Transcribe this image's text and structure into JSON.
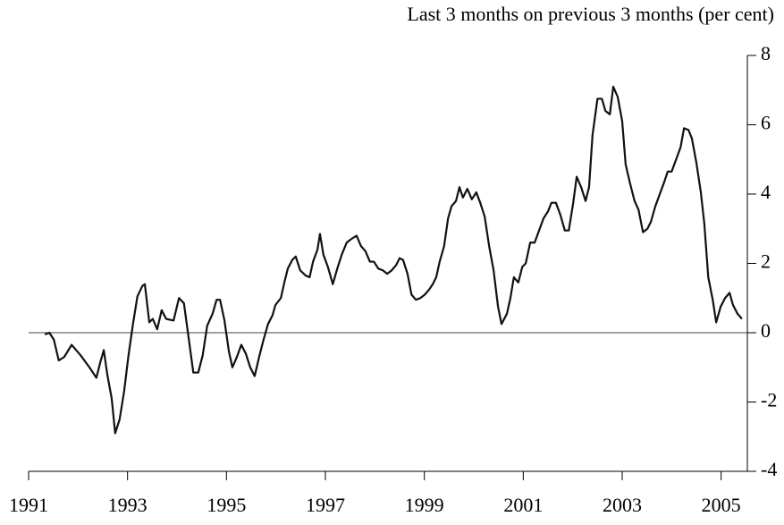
{
  "chart_data": {
    "type": "line",
    "title": "Last 3 months on previous 3 months (per cent)",
    "x": [
      1991.33,
      1991.42,
      1991.51,
      1991.61,
      1991.72,
      1991.87,
      1992.05,
      1992.23,
      1992.37,
      1992.45,
      1992.52,
      1992.59,
      1992.68,
      1992.75,
      1992.84,
      1992.93,
      1993.02,
      1993.11,
      1993.2,
      1993.3,
      1993.35,
      1993.44,
      1993.51,
      1993.6,
      1993.69,
      1993.78,
      1993.93,
      1994.04,
      1994.14,
      1994.33,
      1994.43,
      1994.52,
      1994.61,
      1994.72,
      1994.8,
      1994.87,
      1994.96,
      1995.05,
      1995.12,
      1995.21,
      1995.3,
      1995.39,
      1995.48,
      1995.57,
      1995.66,
      1995.75,
      1995.84,
      1995.93,
      1995.99,
      1996.1,
      1996.17,
      1996.24,
      1996.33,
      1996.4,
      1996.49,
      1996.6,
      1996.68,
      1996.75,
      1996.84,
      1996.89,
      1996.96,
      1997.05,
      1997.15,
      1997.24,
      1997.33,
      1997.43,
      1997.52,
      1997.63,
      1997.72,
      1997.81,
      1997.9,
      1997.98,
      1998.07,
      1998.16,
      1998.25,
      1998.34,
      1998.43,
      1998.5,
      1998.57,
      1998.66,
      1998.74,
      1998.83,
      1998.92,
      1999.01,
      1999.1,
      1999.17,
      1999.24,
      1999.31,
      1999.4,
      1999.48,
      1999.55,
      1999.64,
      1999.71,
      1999.78,
      1999.87,
      1999.96,
      2000.05,
      2000.13,
      2000.22,
      2000.31,
      2000.4,
      2000.49,
      2000.56,
      2000.67,
      2000.74,
      2000.81,
      2000.9,
      2000.98,
      2001.05,
      2001.14,
      2001.23,
      2001.32,
      2001.41,
      2001.5,
      2001.57,
      2001.66,
      2001.75,
      2001.84,
      2001.92,
      2002.01,
      2002.08,
      2002.17,
      2002.26,
      2002.33,
      2002.4,
      2002.5,
      2002.59,
      2002.66,
      2002.75,
      2002.82,
      2002.91,
      2003.0,
      2003.07,
      2003.16,
      2003.25,
      2003.33,
      2003.42,
      2003.51,
      2003.58,
      2003.67,
      2003.76,
      2003.85,
      2003.92,
      2004.0,
      2004.09,
      2004.18,
      2004.25,
      2004.34,
      2004.41,
      2004.5,
      2004.59,
      2004.66,
      2004.74,
      2004.83,
      2004.9,
      2004.99,
      2005.08,
      2005.17,
      2005.24,
      2005.33,
      2005.42
    ],
    "series": [
      {
        "color": "#111111",
        "values": [
          -0.05,
          0,
          -0.2,
          -0.8,
          -0.7,
          -0.35,
          -0.65,
          -1.0,
          -1.3,
          -0.85,
          -0.5,
          -1.2,
          -1.9,
          -2.9,
          -2.5,
          -1.7,
          -0.65,
          0.25,
          1.05,
          1.35,
          1.4,
          0.3,
          0.4,
          0.1,
          0.65,
          0.4,
          0.35,
          1.0,
          0.85,
          -1.15,
          -1.15,
          -0.65,
          0.2,
          0.55,
          0.95,
          0.95,
          0.35,
          -0.55,
          -1.0,
          -0.7,
          -0.35,
          -0.6,
          -1.0,
          -1.25,
          -0.7,
          -0.2,
          0.25,
          0.5,
          0.8,
          1.0,
          1.45,
          1.85,
          2.1,
          2.2,
          1.8,
          1.65,
          1.6,
          2.05,
          2.4,
          2.85,
          2.25,
          1.9,
          1.4,
          1.85,
          2.25,
          2.6,
          2.7,
          2.8,
          2.5,
          2.35,
          2.05,
          2.05,
          1.85,
          1.8,
          1.7,
          1.8,
          1.95,
          2.15,
          2.1,
          1.7,
          1.1,
          0.95,
          1.0,
          1.1,
          1.25,
          1.4,
          1.6,
          2.05,
          2.5,
          3.3,
          3.65,
          3.8,
          4.2,
          3.9,
          4.15,
          3.85,
          4.05,
          3.75,
          3.35,
          2.5,
          1.8,
          0.75,
          0.25,
          0.55,
          1.0,
          1.6,
          1.45,
          1.9,
          2.0,
          2.6,
          2.6,
          2.95,
          3.3,
          3.5,
          3.75,
          3.75,
          3.4,
          2.95,
          2.95,
          3.75,
          4.5,
          4.2,
          3.8,
          4.2,
          5.7,
          6.75,
          6.75,
          6.4,
          6.3,
          7.1,
          6.8,
          6.1,
          4.85,
          4.3,
          3.8,
          3.55,
          2.9,
          3.0,
          3.2,
          3.65,
          4.0,
          4.35,
          4.65,
          4.65,
          5.0,
          5.35,
          5.9,
          5.85,
          5.6,
          4.9,
          4.05,
          3.15,
          1.6,
          0.95,
          0.3,
          0.75,
          1.0,
          1.15,
          0.8,
          0.55,
          0.4
        ]
      }
    ],
    "xlim": [
      1991,
      2005.53
    ],
    "xticks": [
      1991,
      1993,
      1995,
      1997,
      1999,
      2001,
      2003,
      2005
    ],
    "ylim": [
      -4,
      8
    ],
    "yticks": [
      -4,
      -2,
      0,
      2,
      4,
      6,
      8
    ],
    "zero_line": true,
    "axis_side": "right"
  }
}
